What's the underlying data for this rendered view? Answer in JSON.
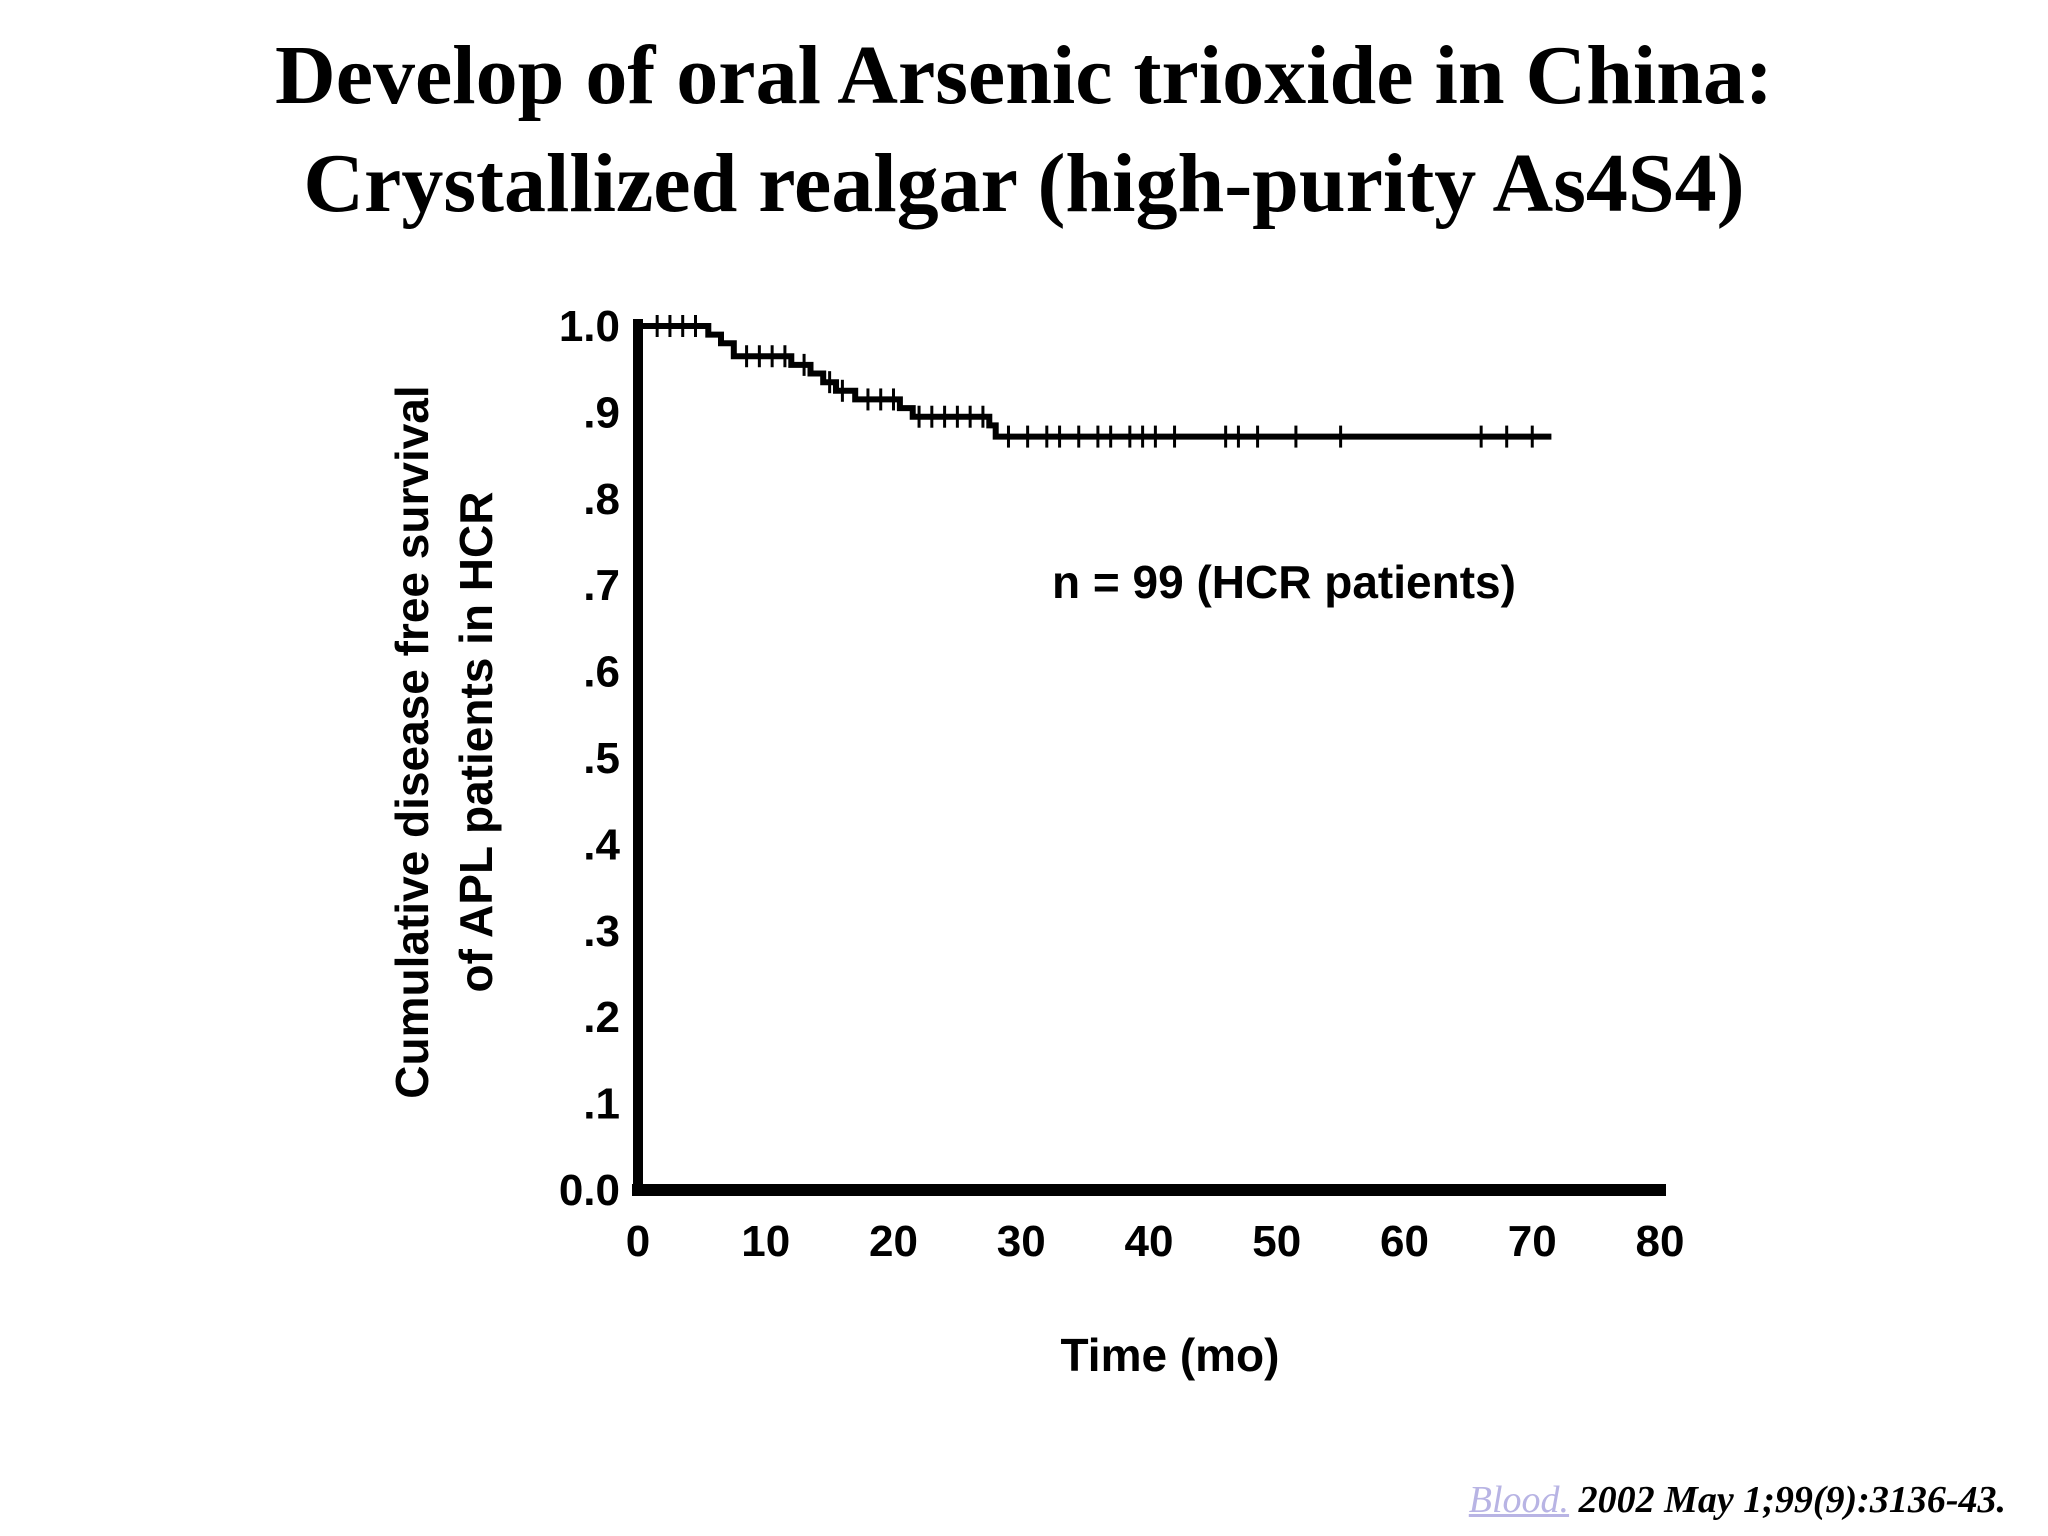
{
  "title": {
    "line1": "Develop of oral Arsenic trioxide in China:",
    "line2": "Crystallized realgar (high-purity As4S4)"
  },
  "chart_data": {
    "type": "line",
    "title": "",
    "xlabel": "Time (mo)",
    "ylabel_line1": "Cumulative disease free survival",
    "ylabel_line2": "of APL patients in HCR",
    "xlim": [
      0,
      80
    ],
    "ylim": [
      0,
      1.0
    ],
    "x_ticks": [
      0,
      10,
      20,
      30,
      40,
      50,
      60,
      70,
      80
    ],
    "x_tick_labels": [
      "0",
      "10",
      "20",
      "30",
      "40",
      "50",
      "60",
      "70",
      "80"
    ],
    "y_ticks": [
      0,
      0.1,
      0.2,
      0.3,
      0.4,
      0.5,
      0.6,
      0.7,
      0.8,
      0.9,
      1.0
    ],
    "y_tick_labels": [
      "0.0",
      ".1",
      ".2",
      ".3",
      ".4",
      ".5",
      ".6",
      ".7",
      ".8",
      ".9",
      "1.0"
    ],
    "annotation": "n = 99 (HCR patients)",
    "grid": false,
    "line_color": "#000000",
    "series": [
      {
        "step_points": [
          [
            0,
            1.0
          ],
          [
            5.5,
            1.0
          ],
          [
            5.5,
            0.99
          ],
          [
            6.5,
            0.99
          ],
          [
            6.5,
            0.98
          ],
          [
            7.5,
            0.98
          ],
          [
            7.5,
            0.965
          ],
          [
            12,
            0.965
          ],
          [
            12,
            0.955
          ],
          [
            13.5,
            0.955
          ],
          [
            13.5,
            0.945
          ],
          [
            14.5,
            0.945
          ],
          [
            14.5,
            0.935
          ],
          [
            15.5,
            0.935
          ],
          [
            15.5,
            0.925
          ],
          [
            17,
            0.925
          ],
          [
            17,
            0.915
          ],
          [
            20.5,
            0.915
          ],
          [
            20.5,
            0.905
          ],
          [
            21.5,
            0.905
          ],
          [
            21.5,
            0.895
          ],
          [
            27.5,
            0.895
          ],
          [
            27.5,
            0.885
          ],
          [
            28,
            0.885
          ],
          [
            28,
            0.872
          ],
          [
            71.5,
            0.872
          ]
        ],
        "censor_times": [
          1.5,
          2.5,
          3.5,
          4.5,
          8.5,
          9.5,
          10.5,
          11.5,
          13,
          15,
          16,
          18,
          19,
          20,
          22,
          23,
          24,
          25,
          26,
          27,
          29,
          30.5,
          32,
          33,
          34.5,
          36,
          37,
          38.5,
          39.5,
          40.5,
          42,
          46,
          47,
          48.5,
          51.5,
          55,
          66,
          68,
          70
        ]
      }
    ]
  },
  "citation": {
    "journal": "Blood.",
    "rest": " 2002 May 1;99(9):3136-43."
  }
}
